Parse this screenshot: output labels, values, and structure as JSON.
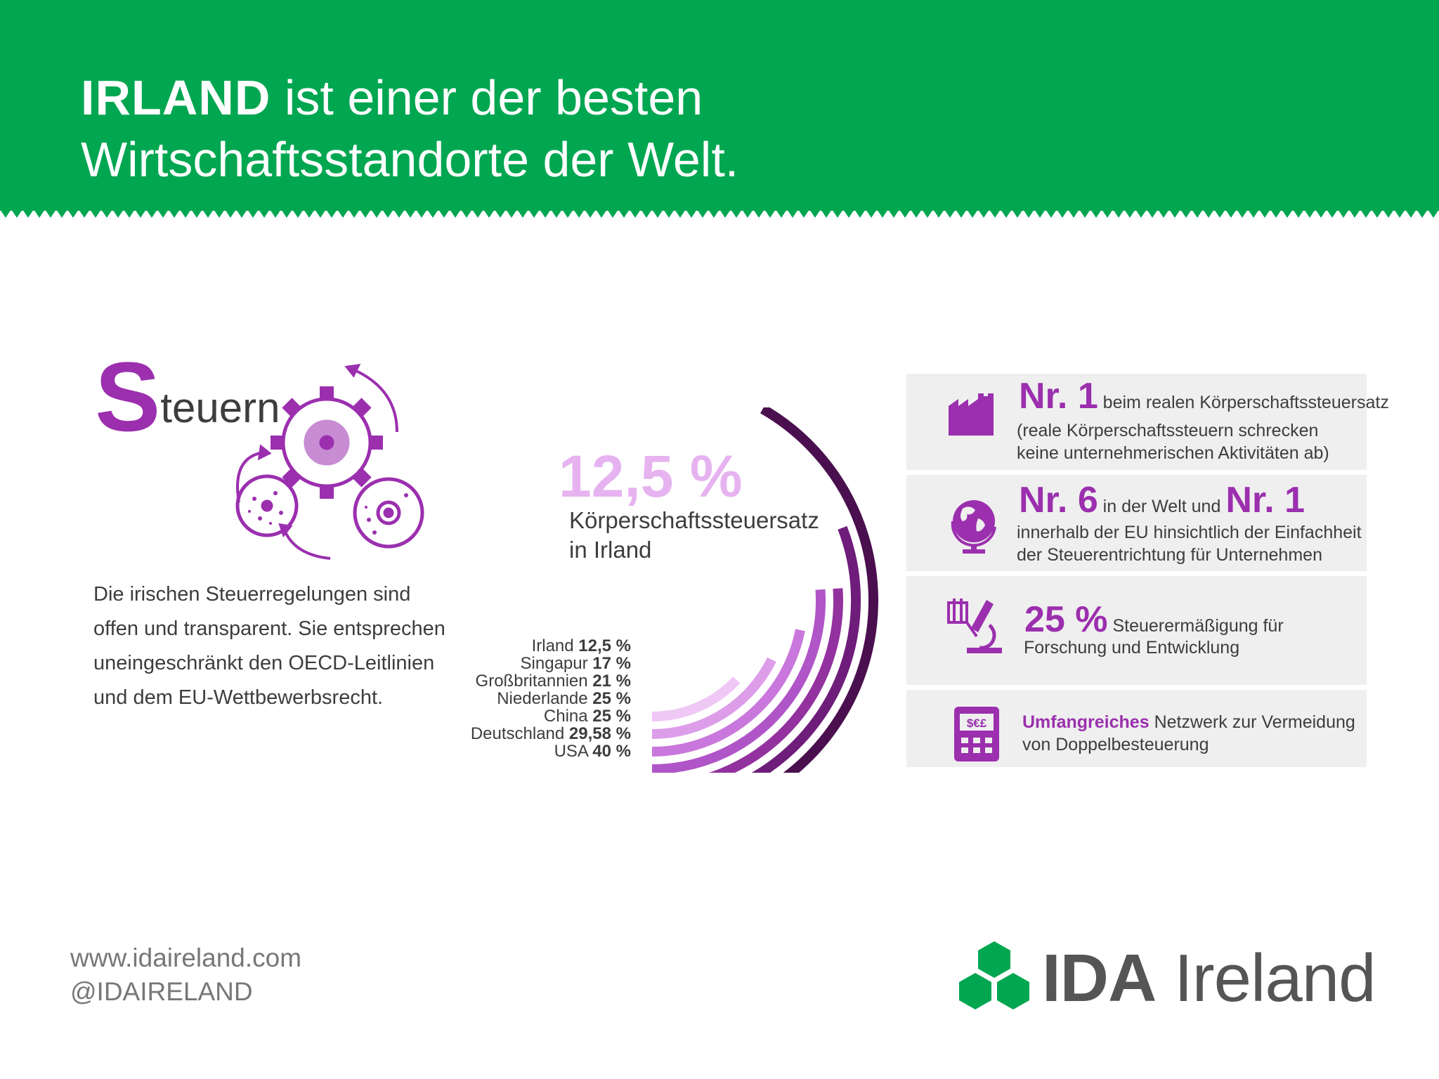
{
  "header": {
    "title_bold": "IRLAND",
    "title_line1": " ist einer der besten",
    "title_line2": "Wirtschaftsstandorte der Welt."
  },
  "steuern": {
    "initial": "S",
    "rest": "teuern",
    "description": "Die irischen Steuerregelungen sind offen und transparent. Sie entsprechen uneingeschränkt den OECD-Leitlinien und dem EU-Wettbewerbsrecht."
  },
  "highlight": {
    "value": "12,5 %",
    "label_line1": "Körperschaftssteuersatz",
    "label_line2": "in Irland"
  },
  "chart_data": {
    "type": "bar",
    "categories": [
      "Irland",
      "Singapur",
      "Großbritannien",
      "Niederlande",
      "China",
      "Deutschland",
      "USA"
    ],
    "values": [
      12.5,
      17,
      21,
      25,
      25,
      29.58,
      40
    ],
    "value_labels": [
      "12,5 %",
      "17 %",
      "21 %",
      "25 %",
      "25 %",
      "29,58 %",
      "40 %"
    ],
    "colors": [
      "#efc8f5",
      "#dd9de9",
      "#c977dc",
      "#b055c8",
      "#93329f",
      "#6e1d7a",
      "#4a0f4e"
    ],
    "title": "",
    "xlabel": "",
    "ylabel": ""
  },
  "facts": [
    {
      "icon": "factory-icon",
      "big": "Nr. 1",
      "text1": " beim realen Körperschaftssteuersatz",
      "text2": "(reale Körperschaftssteuern schrecken",
      "text3": "keine unternehmerischen Aktivitäten ab)"
    },
    {
      "icon": "globe-icon",
      "big": "Nr. 6",
      "mid": " in der Welt und ",
      "big2": "Nr. 1",
      "text2": "innerhalb der EU hinsichtlich der Einfachheit",
      "text3": "der Steuerentrichtung für Unternehmen"
    },
    {
      "icon": "microscope-icon",
      "big": "25 %",
      "text1": " Steuerermäßigung für",
      "text2": "Forschung und Entwicklung"
    },
    {
      "icon": "calculator-icon",
      "bold": "Umfangreiches",
      "text1": " Netzwerk zur Vermeidung",
      "text2": "von Doppelbesteuerung",
      "calc_symbols": "$€£"
    }
  ],
  "footer": {
    "url": "www.idaireland.com",
    "handle": "@IDAIRELAND",
    "logo_bold": "IDA",
    "logo_rest": " Ireland"
  },
  "colors": {
    "green": "#00a650",
    "purple": "#9b2fae",
    "light_purple": "#e6b3f0",
    "panel": "#efefef"
  }
}
